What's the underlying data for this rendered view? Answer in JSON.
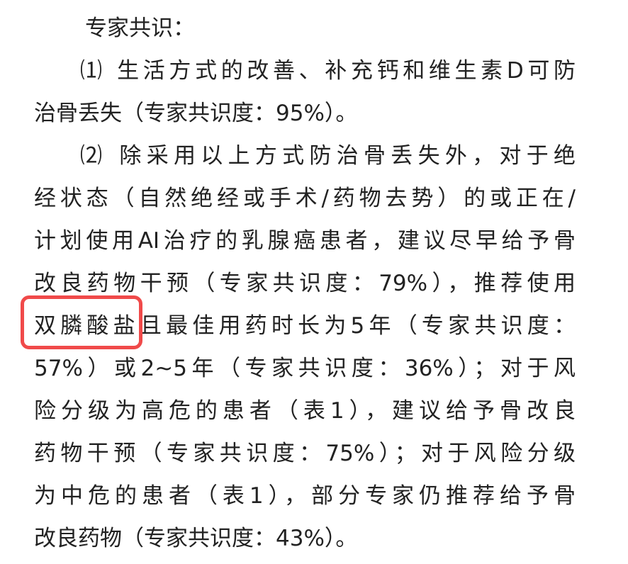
{
  "document": {
    "lines": [
      "专家共识：",
      "⑴ 生活方式的改善、补充钙和维生素D可防",
      "治骨丢失（专家共识度：95%）。",
      "⑵ 除采用以上方式防治骨丢失外，对于绝",
      "经状态（自然绝经或手术/药物去势）的或正在/",
      "计划使用AI治疗的乳腺癌患者，建议尽早给予骨",
      "改良药物干预（专家共识度：79%），推荐使用",
      "双膦酸盐且最佳用药时长为5年（专家共识度：",
      "57%）或2~5年（专家共识度：36%）；对于风",
      "险分级为高危的患者（表1），建议给予骨改良",
      "药物干预（专家共识度：75%）；对于风险分级",
      "为中危的患者（表1），部分专家仍推荐给予骨",
      "改良药物（专家共识度：43%）。"
    ],
    "highlight": {
      "text": "双膦酸盐",
      "color": "#f04a4a"
    }
  }
}
